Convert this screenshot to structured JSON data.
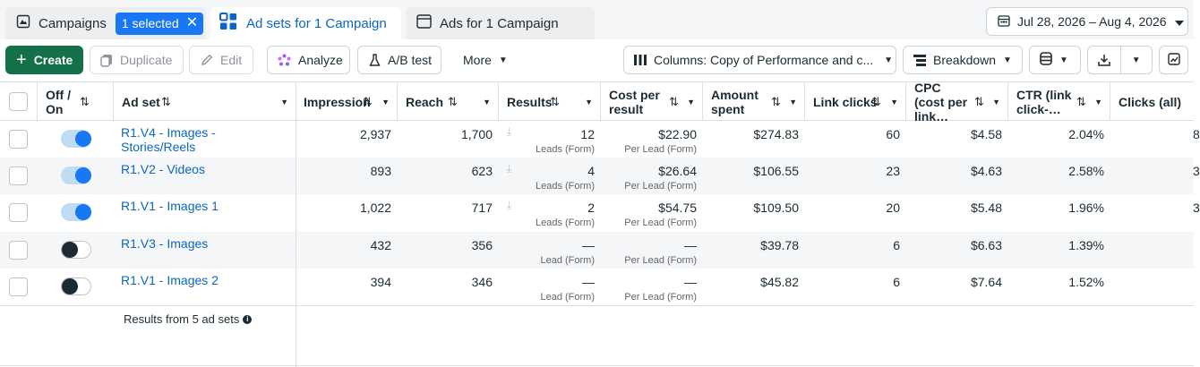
{
  "tabs": {
    "campaigns_label": "Campaigns",
    "selected_pill": "1 selected",
    "adsets_label": "Ad sets for 1 Campaign",
    "ads_label": "Ads for 1 Campaign"
  },
  "date_range": "Jul 28, 2026 – Aug 4, 2026",
  "toolbar": {
    "create": "Create",
    "duplicate": "Duplicate",
    "edit": "Edit",
    "analyze": "Analyze",
    "ab_test": "A/B test",
    "more": "More",
    "columns": "Columns: Copy of Performance and c...",
    "breakdown": "Breakdown"
  },
  "columns": {
    "off_on": "Off / On",
    "ad_set": "Ad set",
    "impressions": "Impression",
    "reach": "Reach",
    "results": "Results",
    "cost_per_result": "Cost per result",
    "amount_spent": "Amount spent",
    "link_clicks": "Link clicks",
    "cpc": "CPC (cost per link…",
    "ctr": "CTR (link click-…",
    "clicks_all": "Clicks (all)"
  },
  "rows": [
    {
      "name": "R1.V4 - Images - Stories/Reels",
      "on": true,
      "impressions": "2,937",
      "reach": "1,700",
      "results": "12",
      "results_sub": "Leads (Form)",
      "cost": "$22.90",
      "cost_sub": "Per Lead (Form)",
      "spent": "$274.83",
      "link_clicks": "60",
      "cpc": "$4.58",
      "ctr": "2.04%",
      "clicks_all": "8"
    },
    {
      "name": "R1.V2 - Videos",
      "on": true,
      "impressions": "893",
      "reach": "623",
      "results": "4",
      "results_sub": "Leads (Form)",
      "cost": "$26.64",
      "cost_sub": "Per Lead (Form)",
      "spent": "$106.55",
      "link_clicks": "23",
      "cpc": "$4.63",
      "ctr": "2.58%",
      "clicks_all": "3"
    },
    {
      "name": "R1.V1 - Images 1",
      "on": true,
      "impressions": "1,022",
      "reach": "717",
      "results": "2",
      "results_sub": "Leads (Form)",
      "cost": "$54.75",
      "cost_sub": "Per Lead (Form)",
      "spent": "$109.50",
      "link_clicks": "20",
      "cpc": "$5.48",
      "ctr": "1.96%",
      "clicks_all": "3"
    },
    {
      "name": "R1.V3 - Images",
      "on": false,
      "impressions": "432",
      "reach": "356",
      "results": "—",
      "results_sub": "Lead (Form)",
      "cost": "—",
      "cost_sub": "Per Lead (Form)",
      "spent": "$39.78",
      "link_clicks": "6",
      "cpc": "$6.63",
      "ctr": "1.39%",
      "clicks_all": ""
    },
    {
      "name": "R1.V1 - Images 2",
      "on": false,
      "impressions": "394",
      "reach": "346",
      "results": "—",
      "results_sub": "Lead (Form)",
      "cost": "—",
      "cost_sub": "Per Lead (Form)",
      "spent": "$45.82",
      "link_clicks": "6",
      "cpc": "$7.64",
      "ctr": "1.52%",
      "clicks_all": ""
    }
  ],
  "footer": {
    "results_text": "Results from 5 ad sets"
  },
  "colors": {
    "accent": "#1877f2",
    "create_green": "#137049",
    "link_blue": "#0a66c2"
  }
}
